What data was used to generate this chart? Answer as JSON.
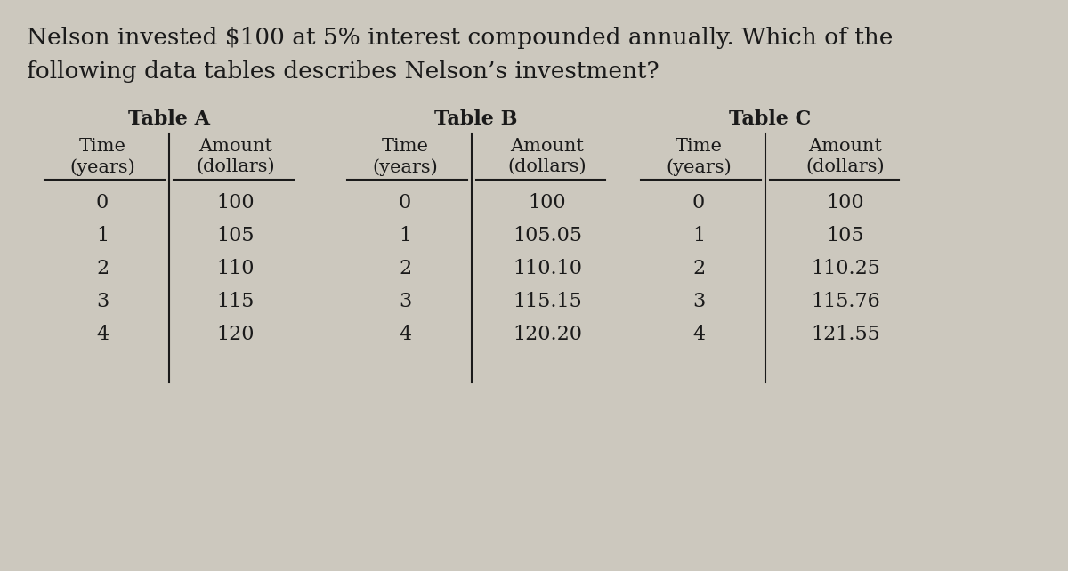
{
  "question_line1": "Nelson invested $100 at 5% interest compounded annually. Which of the",
  "question_line2": "following data tables describes Nelson’s investment?",
  "bg_color": "#ccc8be",
  "text_color": "#1a1a1a",
  "table_a_title": "Table A",
  "table_b_title": "Table B",
  "table_c_title": "Table C",
  "table_a_time": [
    0,
    1,
    2,
    3,
    4
  ],
  "table_a_amount": [
    "100",
    "105",
    "110",
    "115",
    "120"
  ],
  "table_b_time": [
    0,
    1,
    2,
    3,
    4
  ],
  "table_b_amount": [
    "100",
    "105.05",
    "110.10",
    "115.15",
    "120.20"
  ],
  "table_c_time": [
    0,
    1,
    2,
    3,
    4
  ],
  "table_c_amount": [
    "100",
    "105",
    "110.25",
    "115.76",
    "121.55"
  ],
  "q_fontsize": 19,
  "title_fontsize": 16,
  "header_fontsize": 15,
  "data_fontsize": 16
}
